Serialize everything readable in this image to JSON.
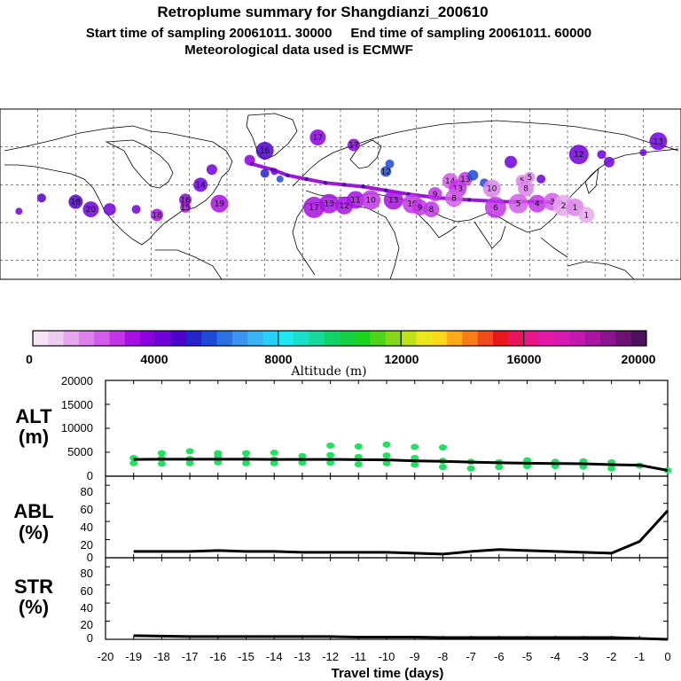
{
  "header": {
    "title": "Retroplume summary for Shangdianzi_200610",
    "sampling_line": "Start time of sampling 20061011. 30000     End time of sampling 20061011. 60000",
    "met_line": "Meteorological data used is ECMWF"
  },
  "colorbar": {
    "label": "Altitude (m)",
    "ticks": [
      "0",
      "4000",
      "8000",
      "12000",
      "16000",
      "20000"
    ],
    "range": [
      0,
      20000
    ],
    "colors": [
      "#f5e4f5",
      "#eecbf1",
      "#e6a7ee",
      "#dd82ec",
      "#d35ce9",
      "#c234e6",
      "#a80fe3",
      "#8c00df",
      "#6f00d9",
      "#4d00cc",
      "#2424ca",
      "#1f4ad5",
      "#2d70e3",
      "#3c94ef",
      "#39b4f5",
      "#28d0f7",
      "#1ee8f2",
      "#1ae0c9",
      "#16d99a",
      "#12d36a",
      "#14d042",
      "#1ad41e",
      "#4fd41a",
      "#88d81a",
      "#bde21a",
      "#ece81a",
      "#fdd919",
      "#fbab19",
      "#f77d19",
      "#f24b19",
      "#e9161d",
      "#e8145f",
      "#e8168a",
      "#e418a8",
      "#d71ab3",
      "#c419ae",
      "#a917a0",
      "#8a148d",
      "#6c1274",
      "#4e105c"
    ]
  },
  "map": {
    "track_points_lonlat": [
      [
        -47,
        61
      ],
      [
        -36,
        58
      ],
      [
        -28,
        55
      ],
      [
        -18,
        53
      ],
      [
        -8,
        51
      ],
      [
        2,
        50
      ],
      [
        12,
        49
      ],
      [
        24,
        47
      ],
      [
        36,
        45
      ],
      [
        52,
        43
      ],
      [
        68,
        42
      ],
      [
        86,
        41
      ],
      [
        102,
        41
      ],
      [
        117,
        40.6
      ]
    ],
    "plumes": [
      {
        "lon": -170,
        "lat": 36,
        "alt": 4300,
        "r": 4,
        "label": ""
      },
      {
        "lon": -158,
        "lat": 43,
        "alt": 4700,
        "r": 5,
        "label": ""
      },
      {
        "lon": -140,
        "lat": 41,
        "alt": 4500,
        "r": 8,
        "label": "18"
      },
      {
        "lon": -132,
        "lat": 37,
        "alt": 4200,
        "r": 9,
        "label": "20"
      },
      {
        "lon": -122,
        "lat": 37,
        "alt": 4300,
        "r": 7,
        "label": ""
      },
      {
        "lon": -108,
        "lat": 37,
        "alt": 4400,
        "r": 5,
        "label": ""
      },
      {
        "lon": -97,
        "lat": 34,
        "alt": 3300,
        "r": 7,
        "label": "18"
      },
      {
        "lon": -82,
        "lat": 42,
        "alt": 3600,
        "r": 7,
        "label": "16"
      },
      {
        "lon": -82,
        "lat": 38,
        "alt": 3400,
        "r": 6,
        "label": "15"
      },
      {
        "lon": -74,
        "lat": 50,
        "alt": 4300,
        "r": 8,
        "label": "14"
      },
      {
        "lon": -68,
        "lat": 58,
        "alt": 4000,
        "r": 6,
        "label": ""
      },
      {
        "lon": -64,
        "lat": 40,
        "alt": 3300,
        "r": 10,
        "label": "19"
      },
      {
        "lon": -48,
        "lat": 63,
        "alt": 3700,
        "r": 6,
        "label": ""
      },
      {
        "lon": -35,
        "lat": 57,
        "alt": 4000,
        "r": 4,
        "label": ""
      },
      {
        "lon": -12,
        "lat": 75,
        "alt": 3500,
        "r": 9,
        "label": "17"
      },
      {
        "lon": 7,
        "lat": 71,
        "alt": 3900,
        "r": 7,
        "label": "17"
      },
      {
        "lon": -40,
        "lat": 68,
        "alt": 4500,
        "r": 10,
        "label": "16"
      },
      {
        "lon": -40,
        "lat": 56,
        "alt": 5300,
        "r": 5,
        "label": ""
      },
      {
        "lon": -32,
        "lat": 53,
        "alt": 5500,
        "r": 4,
        "label": ""
      },
      {
        "lon": -14,
        "lat": 38,
        "alt": 3200,
        "r": 12,
        "label": "17"
      },
      {
        "lon": -6,
        "lat": 40,
        "alt": 3200,
        "r": 11,
        "label": "13"
      },
      {
        "lon": 2,
        "lat": 39,
        "alt": 3000,
        "r": 10,
        "label": "12"
      },
      {
        "lon": 8,
        "lat": 42,
        "alt": 3100,
        "r": 10,
        "label": "11"
      },
      {
        "lon": 16,
        "lat": 42,
        "alt": 2900,
        "r": 11,
        "label": "10"
      },
      {
        "lon": 28,
        "lat": 42,
        "alt": 3000,
        "r": 11,
        "label": "13"
      },
      {
        "lon": 24,
        "lat": 57,
        "alt": 5500,
        "r": 6,
        "label": "12"
      },
      {
        "lon": 26,
        "lat": 61,
        "alt": 5900,
        "r": 5,
        "label": ""
      },
      {
        "lon": 38,
        "lat": 40,
        "alt": 2900,
        "r": 11,
        "label": "10"
      },
      {
        "lon": 42,
        "lat": 38,
        "alt": 2800,
        "r": 9,
        "label": "9"
      },
      {
        "lon": 48,
        "lat": 37,
        "alt": 2800,
        "r": 9,
        "label": "8"
      },
      {
        "lon": 50,
        "lat": 45,
        "alt": 2600,
        "r": 8,
        "label": "9"
      },
      {
        "lon": 58,
        "lat": 52,
        "alt": 2400,
        "r": 9,
        "label": "14"
      },
      {
        "lon": 62,
        "lat": 48,
        "alt": 2600,
        "r": 10,
        "label": "13"
      },
      {
        "lon": 60,
        "lat": 43,
        "alt": 2300,
        "r": 10,
        "label": "8"
      },
      {
        "lon": 66,
        "lat": 53,
        "alt": 2700,
        "r": 8,
        "label": "13"
      },
      {
        "lon": 70,
        "lat": 55,
        "alt": 5600,
        "r": 6,
        "label": ""
      },
      {
        "lon": 76,
        "lat": 51,
        "alt": 5600,
        "r": 5,
        "label": ""
      },
      {
        "lon": 80,
        "lat": 48,
        "alt": 1600,
        "r": 10,
        "label": "10"
      },
      {
        "lon": 82,
        "lat": 38,
        "alt": 2800,
        "r": 12,
        "label": "6"
      },
      {
        "lon": 90,
        "lat": 62,
        "alt": 4300,
        "r": 7,
        "label": ""
      },
      {
        "lon": 96,
        "lat": 52,
        "alt": 1500,
        "r": 7,
        "label": "5"
      },
      {
        "lon": 98,
        "lat": 48,
        "alt": 1600,
        "r": 9,
        "label": "8"
      },
      {
        "lon": 100,
        "lat": 54,
        "alt": 1500,
        "r": 6,
        "label": "5"
      },
      {
        "lon": 94,
        "lat": 40,
        "alt": 2100,
        "r": 11,
        "label": "5"
      },
      {
        "lon": 104,
        "lat": 40,
        "alt": 2500,
        "r": 10,
        "label": "4"
      },
      {
        "lon": 112,
        "lat": 41,
        "alt": 2300,
        "r": 10,
        "label": "3"
      },
      {
        "lon": 118,
        "lat": 39,
        "alt": 1200,
        "r": 12,
        "label": "2"
      },
      {
        "lon": 124,
        "lat": 38,
        "alt": 1500,
        "r": 10,
        "label": "1"
      },
      {
        "lon": 130,
        "lat": 34,
        "alt": 1000,
        "r": 9,
        "label": "1"
      },
      {
        "lon": 106,
        "lat": 53,
        "alt": 4000,
        "r": 5,
        "label": ""
      },
      {
        "lon": 126,
        "lat": 66,
        "alt": 4200,
        "r": 11,
        "label": "12"
      },
      {
        "lon": 138,
        "lat": 66,
        "alt": 4300,
        "r": 5,
        "label": ""
      },
      {
        "lon": 142,
        "lat": 62,
        "alt": 4200,
        "r": 6,
        "label": ""
      },
      {
        "lon": 160,
        "lat": 67,
        "alt": 4200,
        "r": 4,
        "label": ""
      },
      {
        "lon": 168,
        "lat": 73,
        "alt": 4300,
        "r": 10,
        "label": "13"
      }
    ]
  },
  "panels": {
    "alt": {
      "label_line1": "ALT",
      "label_line2": "(m)",
      "yticks": [
        "20000",
        "15000",
        "10000",
        "5000",
        "0"
      ],
      "ylim": [
        0,
        20000
      ]
    },
    "abl": {
      "label_line1": "ABL",
      "label_line2": "(%)",
      "yticks": [
        "80",
        "60",
        "40",
        "20",
        "0"
      ],
      "ylim": [
        0,
        90
      ]
    },
    "str": {
      "label_line1": "STR",
      "label_line2": "(%)",
      "yticks": [
        "80",
        "60",
        "40",
        "20",
        "0"
      ],
      "ylim": [
        0,
        90
      ]
    }
  },
  "xaxis": {
    "label": "Travel time (days)",
    "ticks": [
      "-20",
      "-19",
      "-18",
      "-17",
      "-16",
      "-15",
      "-14",
      "-13",
      "-12",
      "-11",
      "-10",
      "-9",
      "-8",
      "-7",
      "-6",
      "-5",
      "-4",
      "-3",
      "-2",
      "-1",
      "0"
    ],
    "xlim": [
      -20,
      0
    ]
  },
  "chart_data": {
    "type": "line",
    "title": "Retroplume summary for Shangdianzi_200610",
    "xlabel": "Travel time (days)",
    "x": [
      -19,
      -18,
      -17,
      -16,
      -15,
      -14,
      -13,
      -12,
      -11,
      -10,
      -9,
      -8,
      -7,
      -6,
      -5,
      -4,
      -3,
      -2,
      -1,
      0
    ],
    "series": [
      {
        "name": "ALT (m)",
        "ylim": [
          0,
          20000
        ],
        "values": [
          3500,
          3550,
          3550,
          3550,
          3550,
          3500,
          3500,
          3500,
          3450,
          3400,
          3200,
          3100,
          2950,
          2800,
          2700,
          2650,
          2600,
          2400,
          2300,
          1200
        ]
      },
      {
        "name": "ABL (%)",
        "ylim": [
          0,
          90
        ],
        "values": [
          7,
          7,
          7,
          8,
          7,
          7,
          6,
          6,
          6,
          6,
          5,
          4,
          7,
          9,
          8,
          7,
          6,
          5,
          18,
          52
        ]
      },
      {
        "name": "STR (%)",
        "ylim": [
          0,
          90
        ],
        "values": [
          4,
          3.5,
          3,
          3,
          3,
          3,
          3,
          3,
          2.5,
          2.5,
          2.5,
          2,
          2,
          2,
          2,
          2,
          2,
          2,
          1,
          0
        ]
      }
    ],
    "alt_scatter": {
      "x": [
        -19,
        -19,
        -18,
        -18,
        -18,
        -17,
        -17,
        -17,
        -16,
        -16,
        -16,
        -15,
        -15,
        -15,
        -14,
        -14,
        -14,
        -13,
        -13,
        -12,
        -12,
        -12,
        -11,
        -11,
        -11,
        -10,
        -10,
        -10,
        -9,
        -9,
        -9,
        -8,
        -8,
        -8,
        -7,
        -7,
        -6,
        -6,
        -5,
        -5,
        -4,
        -4,
        -3,
        -3,
        -2,
        -2,
        -1,
        0
      ],
      "y": [
        2700,
        3800,
        2600,
        3700,
        4800,
        2700,
        3600,
        5200,
        2900,
        4100,
        4800,
        2700,
        3600,
        4800,
        2700,
        3500,
        4900,
        2800,
        4200,
        2800,
        4400,
        6400,
        2500,
        4000,
        6200,
        2700,
        4300,
        6600,
        2400,
        3800,
        6100,
        1900,
        3200,
        6000,
        1600,
        3000,
        1900,
        2900,
        2100,
        3300,
        2100,
        3000,
        2000,
        3100,
        1600,
        2900,
        2200,
        1200
      ],
      "color": "#22e060"
    }
  }
}
